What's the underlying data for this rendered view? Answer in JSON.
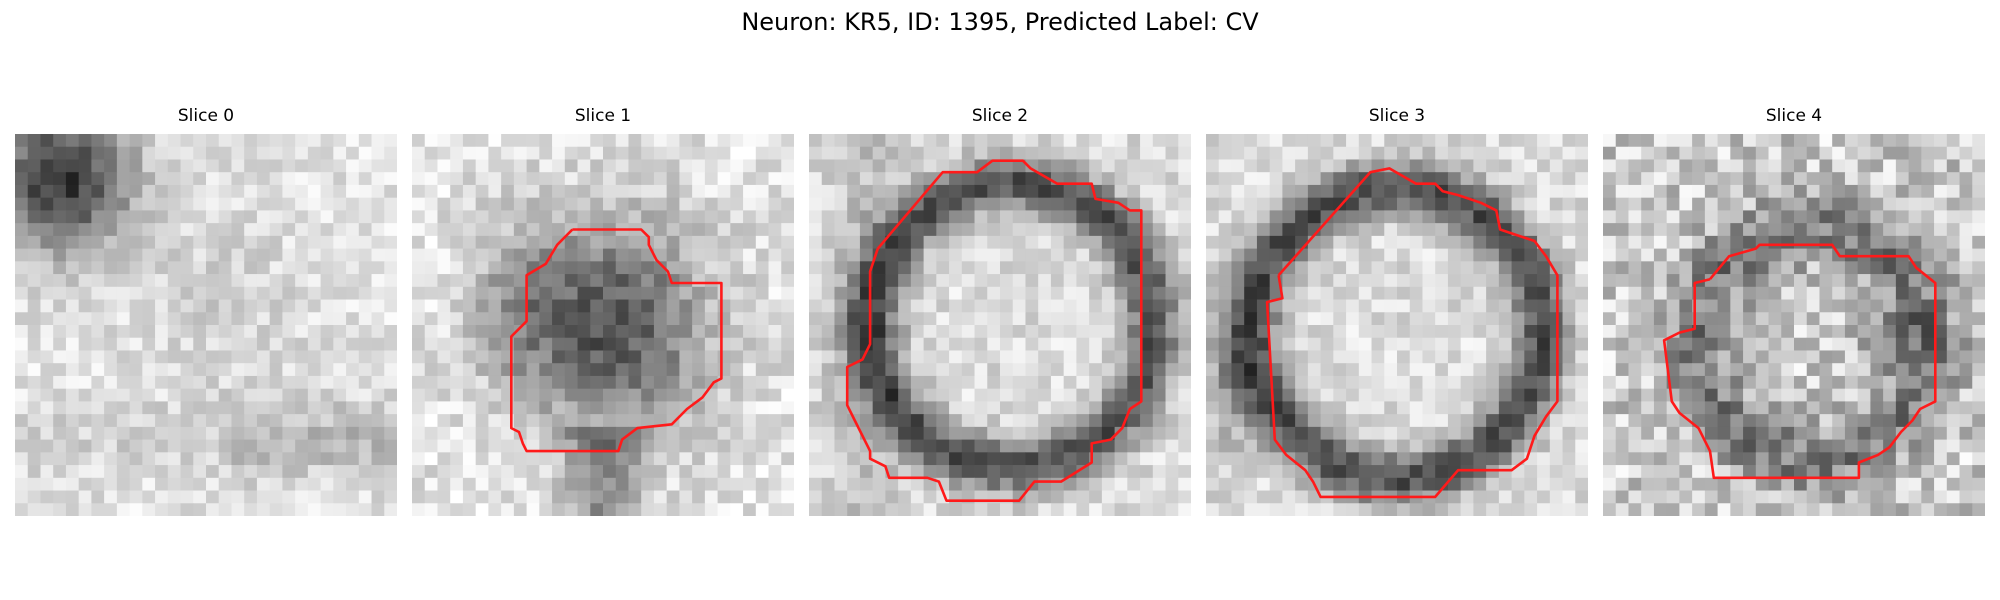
{
  "figure": {
    "title": "Neuron: KR5, ID: 1395, Predicted Label: CV"
  },
  "colors": {
    "background": "#ffffff",
    "contour": "#ff1a1a",
    "colormap": "greyscale (dark = high signal)"
  },
  "panels": [
    {
      "title": "Slice 0",
      "has_contour": false,
      "icon": "grayscale-patch-image"
    },
    {
      "title": "Slice 1",
      "has_contour": true,
      "icon": "grayscale-patch-image"
    },
    {
      "title": "Slice 2",
      "has_contour": true,
      "icon": "grayscale-patch-image"
    },
    {
      "title": "Slice 3",
      "has_contour": true,
      "icon": "grayscale-patch-image"
    },
    {
      "title": "Slice 4",
      "has_contour": true,
      "icon": "grayscale-patch-image"
    }
  ]
}
